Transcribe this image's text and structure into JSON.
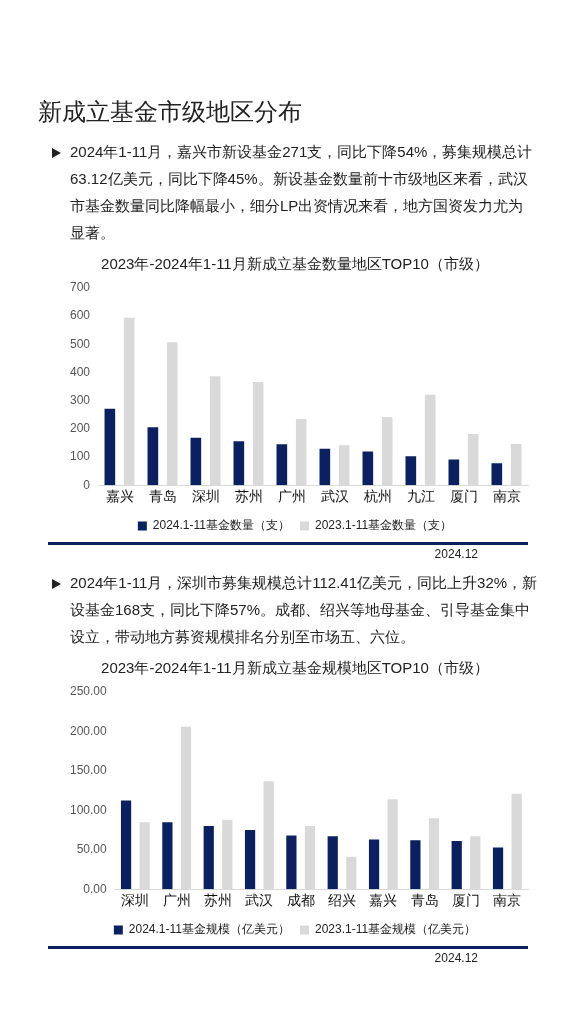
{
  "chart_data": [
    {
      "type": "bar",
      "title": "2023年-2024年1-11月新成立基金数量地区TOP10（市级）",
      "annotations": [
        "新成立基金市级地区分布",
        "2024年1-11月，嘉兴市新设基金271支，同比下降54%，募集规模总计63.12亿美元，同比下降45%。新设基金数量前十市级地区来看，武汉市基金数量同比降幅最小，细分LP出资情况来看，地方国资发力尤为显著。",
        "2024.12"
      ],
      "categories": [
        "嘉兴",
        "青岛",
        "深圳",
        "苏州",
        "广州",
        "武汉",
        "杭州",
        "九江",
        "厦门",
        "南京"
      ],
      "series": [
        {
          "name": "2024.1-11基金数量（支）",
          "color": "#0b2060",
          "values": [
            271,
            206,
            168,
            156,
            145,
            129,
            120,
            103,
            91,
            78
          ]
        },
        {
          "name": "2023.1-11基金数量（支）",
          "color": "#d9d9d9",
          "values": [
            594,
            507,
            387,
            366,
            235,
            142,
            242,
            321,
            182,
            146
          ]
        }
      ],
      "ylim": [
        0,
        700
      ],
      "yticks": [
        0,
        100,
        200,
        300,
        400,
        500,
        600,
        700
      ],
      "grid": false,
      "legend": "bottom"
    },
    {
      "type": "bar",
      "title": "2023年-2024年1-11月新成立基金规模地区TOP10（市级）",
      "annotations": [
        "2024年1-11月，深圳市募集规模总计112.41亿美元，同比上升32%，新设基金168支，同比下降57%。成都、绍兴等地母基金、引导基金集中设立，带动地方募资规模排名分别至市场五、六位。",
        "2024.12"
      ],
      "categories": [
        "深圳",
        "广州",
        "苏州",
        "武汉",
        "成都",
        "绍兴",
        "嘉兴",
        "青岛",
        "厦门",
        "南京"
      ],
      "series": [
        {
          "name": "2024.1-11基金规模（亿美元）",
          "color": "#0b2060",
          "values": [
            112.41,
            85,
            80,
            75,
            68,
            67,
            63.12,
            62,
            61,
            53
          ]
        },
        {
          "name": "2023.1-11基金规模（亿美元）",
          "color": "#d9d9d9",
          "values": [
            85,
            206,
            88,
            137,
            80,
            41,
            114,
            90,
            67,
            121
          ]
        }
      ],
      "ylim": [
        0,
        250
      ],
      "yticks": [
        {
          "value": 0,
          "label": "0.00"
        },
        {
          "value": 50,
          "label": "50.00"
        },
        {
          "value": 100,
          "label": "100.00"
        },
        {
          "value": 150,
          "label": "150.00"
        },
        {
          "value": 200,
          "label": "200.00"
        },
        {
          "value": 250,
          "label": "250.00"
        }
      ],
      "grid": false,
      "legend": "bottom"
    }
  ]
}
